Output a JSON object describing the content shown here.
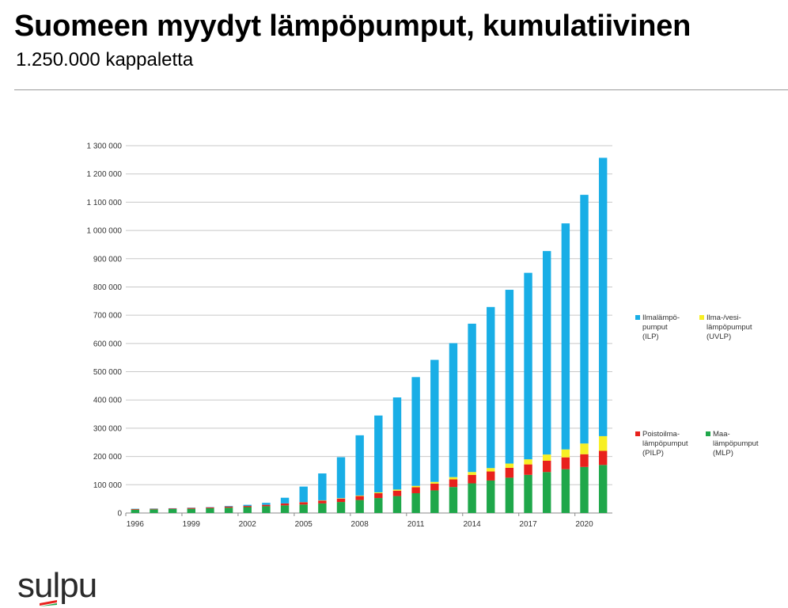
{
  "header": {
    "title": "Suomeen myydyt lämpöpumput, kumulatiivinen",
    "subtitle": "1.250.000 kappaletta"
  },
  "logo": {
    "text": "sulpu"
  },
  "chart_data": {
    "type": "bar",
    "stacked": true,
    "x": [
      1996,
      1997,
      1998,
      1999,
      2000,
      2001,
      2002,
      2003,
      2004,
      2005,
      2006,
      2007,
      2008,
      2009,
      2010,
      2011,
      2012,
      2013,
      2014,
      2015,
      2016,
      2017,
      2018,
      2019,
      2020,
      2021
    ],
    "x_tick_labels": [
      "1996",
      "1999",
      "2002",
      "2005",
      "2008",
      "2011",
      "2014",
      "2017",
      "2020"
    ],
    "y_tick_labels": [
      "0",
      "100 000",
      "200 000",
      "300 000",
      "400 000",
      "500 000",
      "600 000",
      "700 000",
      "800 000",
      "900 000",
      "1 000 000",
      "1 100 000",
      "1 200 000",
      "1 300 000"
    ],
    "ylim": [
      0,
      1300000
    ],
    "grid": true,
    "legend_position": "right",
    "series": [
      {
        "name": "Maa-lämpöpumput (MLP)",
        "legend_lines": [
          "Maa-",
          "lämpöpumput",
          "(MLP)"
        ],
        "color": "#1fa74a",
        "values": [
          12000,
          13000,
          14000,
          15000,
          17000,
          19000,
          21000,
          24000,
          27000,
          30000,
          34000,
          39000,
          46000,
          53000,
          60000,
          70000,
          80000,
          92000,
          105000,
          115000,
          125000,
          135000,
          145000,
          155000,
          163000,
          170000
        ]
      },
      {
        "name": "Poistoilma-lämpöpumput (PILP)",
        "legend_lines": [
          "Poistoilma-",
          "lämpöpumput",
          "(PILP)"
        ],
        "color": "#e8211c",
        "values": [
          2000,
          2000,
          2000,
          3000,
          3000,
          4000,
          4000,
          5000,
          7000,
          8000,
          10000,
          12000,
          14000,
          17000,
          19000,
          21000,
          24000,
          27000,
          30000,
          32000,
          35000,
          37000,
          40000,
          42000,
          45000,
          50000
        ]
      },
      {
        "name": "Ilma-/vesi-lämpöpumput (UVLP)",
        "legend_lines": [
          "Ilma-/vesi-",
          "lämpöpumput",
          "(UVLP)"
        ],
        "color": "#f7ef24",
        "values": [
          0,
          0,
          0,
          0,
          0,
          0,
          0,
          0,
          0,
          500,
          1000,
          1500,
          2000,
          3000,
          4000,
          5000,
          6000,
          8000,
          10000,
          12000,
          15000,
          18000,
          22000,
          28000,
          38000,
          52000
        ]
      },
      {
        "name": "Ilmalämpö-pumput (ILP)",
        "legend_lines": [
          "Ilmalämpö-",
          "pumput",
          "(ILP)"
        ],
        "color": "#19aee6",
        "values": [
          1000,
          1000,
          1000,
          1000,
          1000,
          2000,
          4000,
          7000,
          20000,
          55000,
          95000,
          145000,
          213000,
          272000,
          326000,
          385000,
          432000,
          474000,
          525000,
          570000,
          615000,
          660000,
          720000,
          800000,
          880000,
          985000
        ]
      }
    ]
  }
}
